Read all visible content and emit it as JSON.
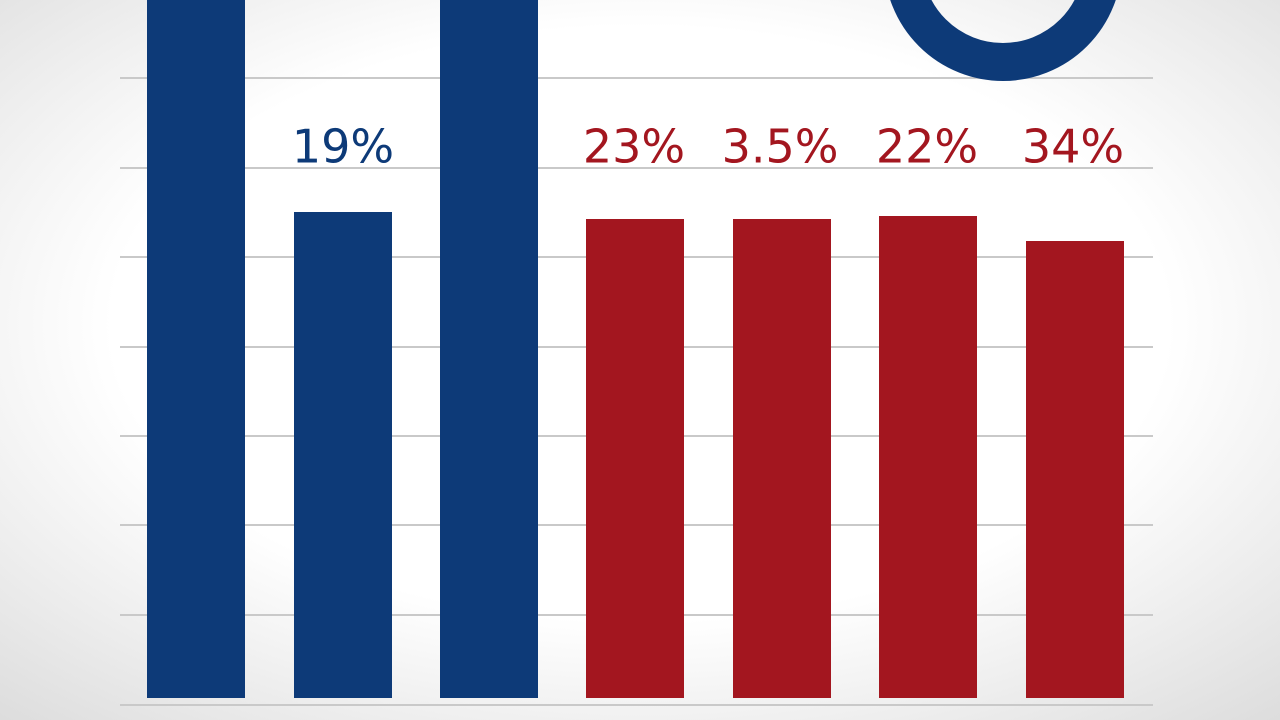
{
  "labels": [
    "19%",
    "23%",
    "3.5%",
    "22%",
    "34%"
  ]
}
